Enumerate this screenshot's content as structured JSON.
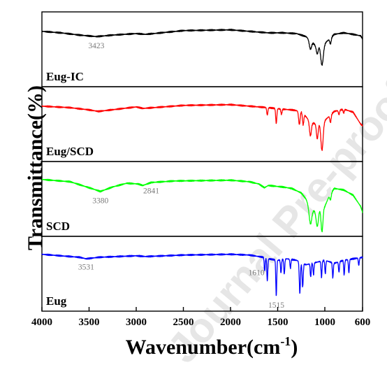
{
  "chart_data": {
    "type": "line",
    "title": "",
    "xlabel_main": "Wavenumber(cm",
    "xlabel_sup": "-1",
    "xlabel_end": ")",
    "ylabel": "Transmittance(%)",
    "xlim": [
      4000,
      600
    ],
    "x_reversed": true,
    "xticks": [
      4000,
      3500,
      3000,
      2500,
      2000,
      1500,
      1000,
      600
    ],
    "watermark": "Journal Pre-proof",
    "panels": [
      {
        "name": "Eug-IC",
        "color": "#000000",
        "baseline": [
          [
            4000,
            0.26
          ],
          [
            3800,
            0.28
          ],
          [
            3600,
            0.31
          ],
          [
            3423,
            0.33
          ],
          [
            3250,
            0.31
          ],
          [
            3000,
            0.29
          ],
          [
            2900,
            0.3
          ],
          [
            2500,
            0.25
          ],
          [
            2000,
            0.24
          ],
          [
            1700,
            0.27
          ],
          [
            1600,
            0.28
          ],
          [
            1450,
            0.28
          ],
          [
            1300,
            0.29
          ],
          [
            1200,
            0.33
          ],
          [
            1150,
            0.38
          ],
          [
            1100,
            0.45
          ],
          [
            1000,
            0.42
          ],
          [
            900,
            0.3
          ],
          [
            800,
            0.28
          ],
          [
            700,
            0.3
          ],
          [
            620,
            0.32
          ],
          [
            600,
            0.36
          ]
        ],
        "peaks": [
          {
            "x": 1153,
            "depth": 0.12,
            "width": 12
          },
          {
            "x": 1080,
            "depth": 0.12,
            "width": 10
          },
          {
            "x": 1030,
            "depth": 0.28,
            "width": 14
          },
          {
            "x": 940,
            "depth": 0.08,
            "width": 8
          }
        ],
        "labels": [
          {
            "text": "3423",
            "x": 3423
          }
        ]
      },
      {
        "name": "Eug/SCD",
        "color": "#ff0000",
        "baseline": [
          [
            4000,
            0.26
          ],
          [
            3700,
            0.28
          ],
          [
            3500,
            0.31
          ],
          [
            3400,
            0.33
          ],
          [
            3200,
            0.3
          ],
          [
            3000,
            0.27
          ],
          [
            2930,
            0.29
          ],
          [
            2500,
            0.25
          ],
          [
            2000,
            0.24
          ],
          [
            1700,
            0.27
          ],
          [
            1600,
            0.28
          ],
          [
            1450,
            0.3
          ],
          [
            1350,
            0.31
          ],
          [
            1250,
            0.33
          ],
          [
            1200,
            0.4
          ],
          [
            1150,
            0.48
          ],
          [
            1080,
            0.5
          ],
          [
            1000,
            0.45
          ],
          [
            900,
            0.33
          ],
          [
            800,
            0.3
          ],
          [
            700,
            0.34
          ],
          [
            620,
            0.5
          ],
          [
            600,
            0.52
          ]
        ],
        "peaks": [
          {
            "x": 1610,
            "depth": 0.1,
            "width": 6
          },
          {
            "x": 1515,
            "depth": 0.2,
            "width": 6
          },
          {
            "x": 1460,
            "depth": 0.07,
            "width": 6
          },
          {
            "x": 1270,
            "depth": 0.18,
            "width": 8
          },
          {
            "x": 1230,
            "depth": 0.15,
            "width": 7
          },
          {
            "x": 1153,
            "depth": 0.18,
            "width": 10
          },
          {
            "x": 1080,
            "depth": 0.2,
            "width": 9
          },
          {
            "x": 1030,
            "depth": 0.38,
            "width": 12
          },
          {
            "x": 940,
            "depth": 0.1,
            "width": 7
          },
          {
            "x": 850,
            "depth": 0.06,
            "width": 6
          },
          {
            "x": 800,
            "depth": 0.05,
            "width": 6
          }
        ],
        "labels": []
      },
      {
        "name": "SCD",
        "color": "#00ff00",
        "baseline": [
          [
            4000,
            0.24
          ],
          [
            3700,
            0.27
          ],
          [
            3550,
            0.33
          ],
          [
            3450,
            0.37
          ],
          [
            3380,
            0.4
          ],
          [
            3250,
            0.34
          ],
          [
            3100,
            0.29
          ],
          [
            2980,
            0.3
          ],
          [
            2930,
            0.32
          ],
          [
            2841,
            0.28
          ],
          [
            2600,
            0.26
          ],
          [
            2000,
            0.25
          ],
          [
            1800,
            0.27
          ],
          [
            1700,
            0.3
          ],
          [
            1640,
            0.35
          ],
          [
            1600,
            0.32
          ],
          [
            1450,
            0.34
          ],
          [
            1350,
            0.36
          ],
          [
            1250,
            0.42
          ],
          [
            1200,
            0.5
          ],
          [
            1150,
            0.64
          ],
          [
            1100,
            0.66
          ],
          [
            1000,
            0.6
          ],
          [
            950,
            0.45
          ],
          [
            900,
            0.36
          ],
          [
            800,
            0.38
          ],
          [
            700,
            0.45
          ],
          [
            620,
            0.6
          ],
          [
            600,
            0.68
          ]
        ],
        "peaks": [
          {
            "x": 1153,
            "depth": 0.2,
            "width": 14
          },
          {
            "x": 1080,
            "depth": 0.22,
            "width": 12
          },
          {
            "x": 1030,
            "depth": 0.32,
            "width": 10
          },
          {
            "x": 940,
            "depth": 0.08,
            "width": 8
          }
        ],
        "labels": [
          {
            "text": "3380",
            "x": 3380
          },
          {
            "text": "2841",
            "x": 2841
          }
        ]
      },
      {
        "name": "Eug",
        "color": "#0000ff",
        "baseline": [
          [
            4000,
            0.24
          ],
          [
            3800,
            0.26
          ],
          [
            3600,
            0.28
          ],
          [
            3531,
            0.3
          ],
          [
            3400,
            0.28
          ],
          [
            3000,
            0.26
          ],
          [
            2900,
            0.27
          ],
          [
            2500,
            0.25
          ],
          [
            2000,
            0.24
          ],
          [
            1800,
            0.25
          ],
          [
            1700,
            0.27
          ],
          [
            1650,
            0.28
          ],
          [
            1600,
            0.3
          ],
          [
            1500,
            0.32
          ],
          [
            1400,
            0.3
          ],
          [
            1300,
            0.32
          ],
          [
            1200,
            0.38
          ],
          [
            1100,
            0.35
          ],
          [
            1000,
            0.32
          ],
          [
            900,
            0.36
          ],
          [
            800,
            0.32
          ],
          [
            700,
            0.3
          ],
          [
            600,
            0.28
          ]
        ],
        "peaks": [
          {
            "x": 1638,
            "depth": 0.18,
            "width": 5
          },
          {
            "x": 1610,
            "depth": 0.3,
            "width": 5
          },
          {
            "x": 1515,
            "depth": 0.48,
            "width": 5
          },
          {
            "x": 1465,
            "depth": 0.18,
            "width": 5
          },
          {
            "x": 1430,
            "depth": 0.2,
            "width": 5
          },
          {
            "x": 1365,
            "depth": 0.12,
            "width": 5
          },
          {
            "x": 1265,
            "depth": 0.42,
            "width": 6
          },
          {
            "x": 1235,
            "depth": 0.32,
            "width": 6
          },
          {
            "x": 1150,
            "depth": 0.18,
            "width": 5
          },
          {
            "x": 1120,
            "depth": 0.16,
            "width": 5
          },
          {
            "x": 1035,
            "depth": 0.22,
            "width": 5
          },
          {
            "x": 995,
            "depth": 0.18,
            "width": 5
          },
          {
            "x": 915,
            "depth": 0.2,
            "width": 5
          },
          {
            "x": 850,
            "depth": 0.14,
            "width": 5
          },
          {
            "x": 795,
            "depth": 0.2,
            "width": 5
          },
          {
            "x": 745,
            "depth": 0.18,
            "width": 5
          },
          {
            "x": 640,
            "depth": 0.1,
            "width": 5
          }
        ],
        "labels": [
          {
            "text": "3531",
            "x": 3531
          },
          {
            "text": "1610",
            "x": 1610
          },
          {
            "text": "1515",
            "x": 1515
          }
        ]
      }
    ]
  }
}
